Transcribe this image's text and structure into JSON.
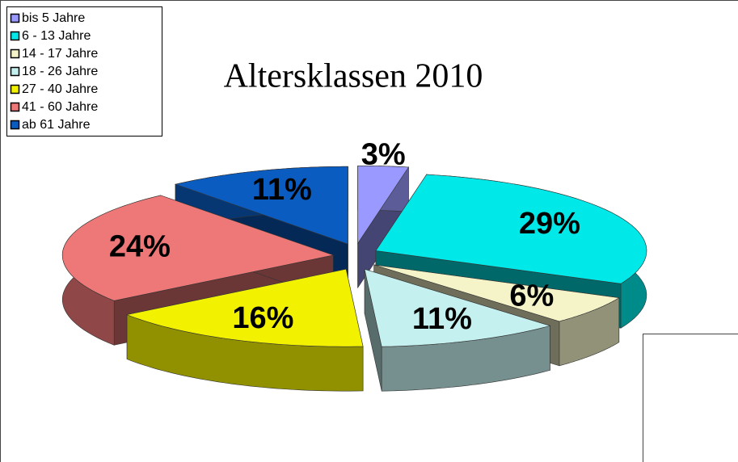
{
  "chart_data": {
    "type": "pie3d",
    "title": "Altersklassen 2010",
    "categories": [
      "bis 5 Jahre",
      "6 - 13 Jahre",
      "14 - 17 Jahre",
      "18 - 26 Jahre",
      "27 - 40 Jahre",
      "41 - 60 Jahre",
      "ab 61 Jahre"
    ],
    "values": [
      3,
      29,
      6,
      11,
      16,
      24,
      11
    ],
    "value_labels": [
      "3%",
      "29%",
      "6%",
      "11%",
      "16%",
      "24%",
      "11%"
    ],
    "colors": [
      "#9999ff",
      "#00e8e8",
      "#f4f4c8",
      "#c4f0f0",
      "#f2f200",
      "#ee7777",
      "#0a5cc0"
    ],
    "legend": "top-left"
  }
}
